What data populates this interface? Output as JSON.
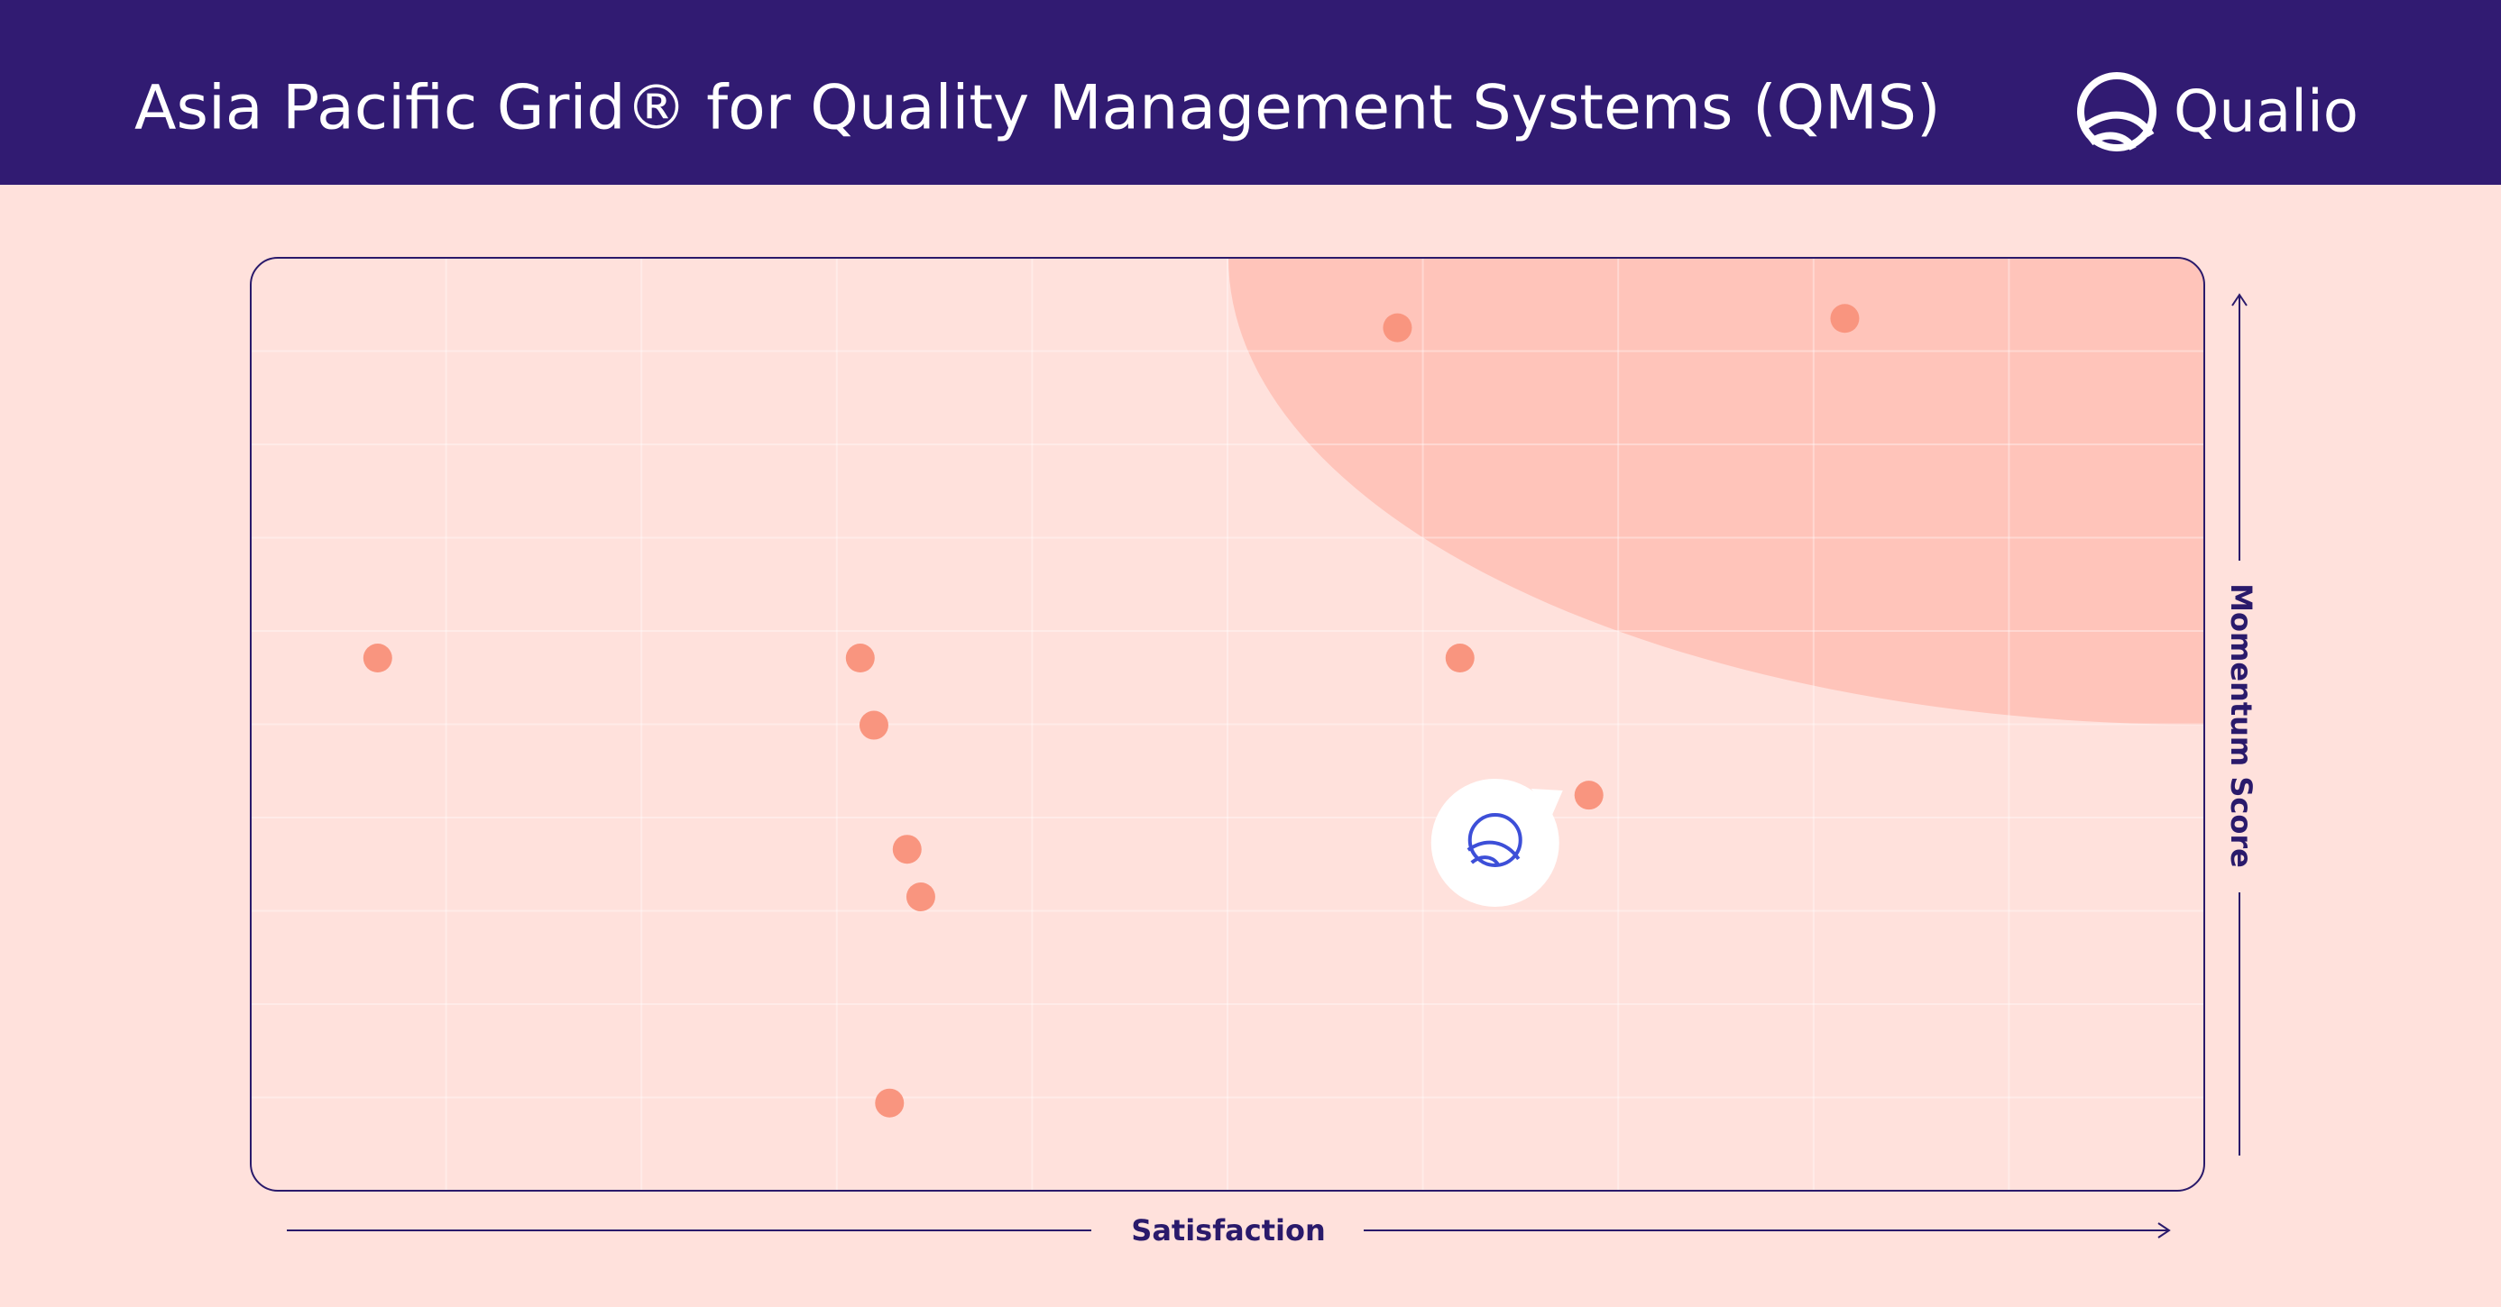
{
  "chart_data": {
    "type": "scatter",
    "title": "Asia Pacific Grid® for Quality Management Systems (QMS)",
    "brand": "Qualio",
    "x_label": "Satisfaction",
    "y_label": "Momentum Score",
    "xlim": [
      0,
      100
    ],
    "ylim": [
      0,
      100
    ],
    "x": [
      6.5,
      31.2,
      31.9,
      33.6,
      34.3,
      32.7,
      58.7,
      81.6,
      61.9,
      68.5
    ],
    "values": [
      57.1,
      57.1,
      49.9,
      36.6,
      31.5,
      9.4,
      92.5,
      93.5,
      57.1,
      42.4
    ],
    "color": "#f9957f",
    "highlight": {
      "x": 63.7,
      "y": 37.3
    },
    "grid": true
  }
}
